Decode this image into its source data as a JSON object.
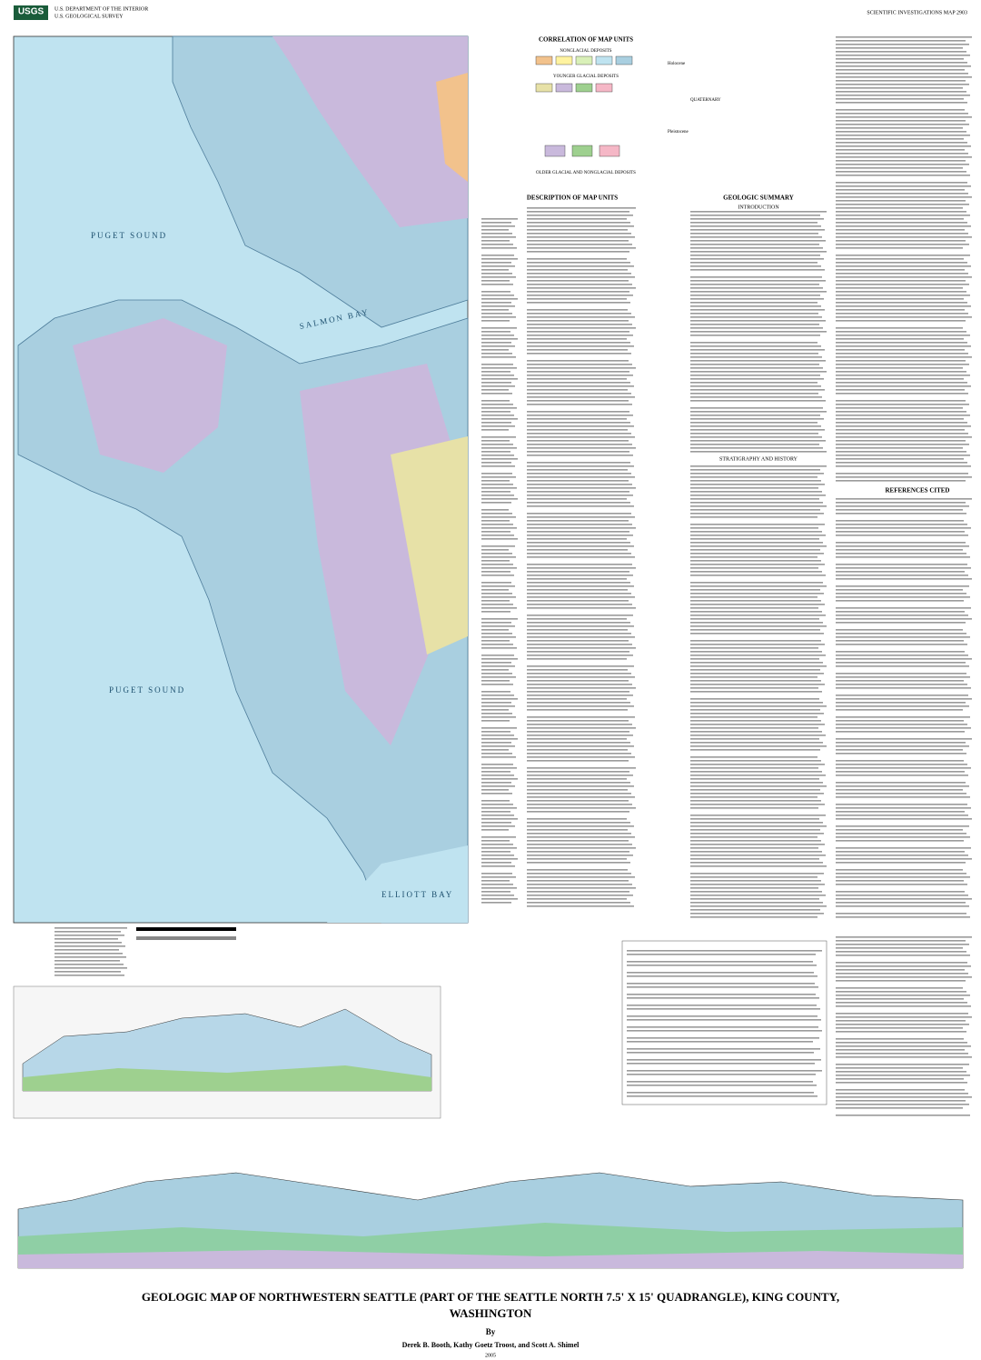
{
  "header": {
    "logo": "USGS",
    "agency": "U.S. DEPARTMENT OF THE INTERIOR",
    "survey": "U.S. GEOLOGICAL SURVEY",
    "map_number": "SCIENTIFIC INVESTIGATIONS MAP 2903"
  },
  "map": {
    "labels": [
      "PUGET SOUND",
      "PUGET SOUND",
      "SALMON BAY",
      "ELLIOTT BAY"
    ]
  },
  "correlation": {
    "groups": [
      "NONGLACIAL DEPOSITS",
      "YOUNGER GLACIAL DEPOSITS",
      "OLDER GLACIAL AND NONGLACIAL DEPOSITS"
    ],
    "epochs": [
      "Holocene",
      "Pleistocene"
    ],
    "period": "QUATERNARY"
  },
  "sections": [
    "CORRELATION OF MAP UNITS",
    "DESCRIPTION OF MAP UNITS",
    "GEOLOGIC SUMMARY",
    "INTRODUCTION",
    "STRATIGRAPHY AND HISTORY",
    "REFERENCES CITED"
  ],
  "title": {
    "line1": "GEOLOGIC MAP OF NORTHWESTERN SEATTLE (PART OF THE SEATTLE NORTH 7.5' X 15' QUADRANGLE), KING COUNTY,",
    "line2": "WASHINGTON"
  },
  "byline": "By",
  "authors": "Derek B. Booth, Kathy Goetz Troost, and Scott A. Shimel",
  "year": "2005"
}
